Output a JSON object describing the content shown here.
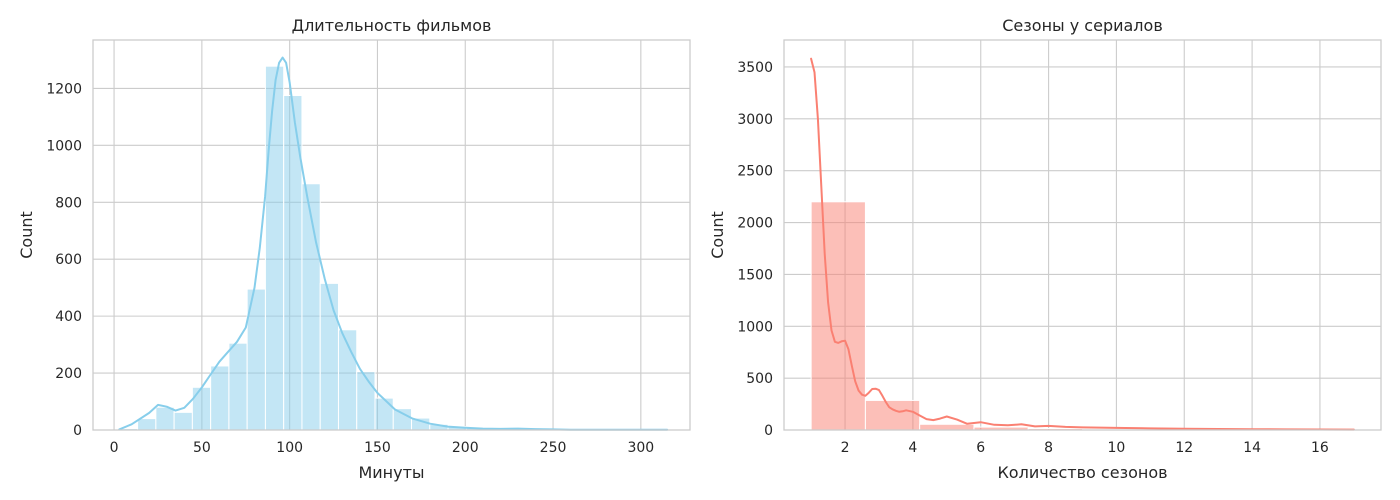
{
  "chart_data": [
    {
      "type": "histogram",
      "title": "Длительность фильмов",
      "xlabel": "Минуты",
      "ylabel": "Count",
      "xlim": [
        -12,
        328
      ],
      "ylim": [
        0,
        1370
      ],
      "xticks": [
        0,
        50,
        100,
        150,
        200,
        250,
        300
      ],
      "yticks": [
        0,
        200,
        400,
        600,
        800,
        1000,
        1200
      ],
      "color": "#87ceeb",
      "bins": [
        {
          "x0": 3,
          "x1": 13.4,
          "count": 5
        },
        {
          "x0": 13.4,
          "x1": 23.8,
          "count": 40
        },
        {
          "x0": 23.8,
          "x1": 34.2,
          "count": 80
        },
        {
          "x0": 34.2,
          "x1": 44.6,
          "count": 62
        },
        {
          "x0": 44.6,
          "x1": 55,
          "count": 150
        },
        {
          "x0": 55,
          "x1": 65.4,
          "count": 225
        },
        {
          "x0": 65.4,
          "x1": 75.8,
          "count": 305
        },
        {
          "x0": 75.8,
          "x1": 86.2,
          "count": 495
        },
        {
          "x0": 86.2,
          "x1": 96.6,
          "count": 1278
        },
        {
          "x0": 96.6,
          "x1": 107,
          "count": 1175
        },
        {
          "x0": 107,
          "x1": 117.4,
          "count": 865
        },
        {
          "x0": 117.4,
          "x1": 127.8,
          "count": 515
        },
        {
          "x0": 127.8,
          "x1": 138.2,
          "count": 352
        },
        {
          "x0": 138.2,
          "x1": 148.6,
          "count": 205
        },
        {
          "x0": 148.6,
          "x1": 159,
          "count": 112
        },
        {
          "x0": 159,
          "x1": 169.4,
          "count": 75
        },
        {
          "x0": 169.4,
          "x1": 179.8,
          "count": 42
        },
        {
          "x0": 179.8,
          "x1": 190.2,
          "count": 20
        },
        {
          "x0": 190.2,
          "x1": 200.6,
          "count": 12
        },
        {
          "x0": 200.6,
          "x1": 211,
          "count": 8
        },
        {
          "x0": 211,
          "x1": 221.4,
          "count": 5
        },
        {
          "x0": 221.4,
          "x1": 231.8,
          "count": 6
        },
        {
          "x0": 231.8,
          "x1": 242.2,
          "count": 3
        },
        {
          "x0": 242.2,
          "x1": 252.6,
          "count": 2
        },
        {
          "x0": 252.6,
          "x1": 263,
          "count": 1
        },
        {
          "x0": 263,
          "x1": 273.4,
          "count": 1
        },
        {
          "x0": 273.4,
          "x1": 283.8,
          "count": 1
        },
        {
          "x0": 283.8,
          "x1": 294.2,
          "count": 0
        },
        {
          "x0": 294.2,
          "x1": 304.6,
          "count": 1
        },
        {
          "x0": 304.6,
          "x1": 315,
          "count": 1
        }
      ],
      "kde": {
        "x": [
          3,
          10,
          20,
          25,
          30,
          35,
          40,
          45,
          50,
          55,
          60,
          65,
          70,
          75,
          80,
          83,
          86,
          88,
          90,
          92,
          94,
          96,
          98,
          100,
          103,
          106,
          110,
          115,
          120,
          125,
          130,
          135,
          140,
          145,
          150,
          160,
          170,
          180,
          190,
          200,
          210,
          220,
          230,
          240,
          250,
          260,
          280,
          300,
          315
        ],
        "y": [
          2,
          20,
          60,
          88,
          82,
          68,
          78,
          110,
          150,
          195,
          240,
          275,
          310,
          360,
          500,
          640,
          820,
          980,
          1120,
          1230,
          1290,
          1308,
          1290,
          1220,
          1080,
          960,
          820,
          660,
          530,
          420,
          340,
          275,
          215,
          170,
          130,
          72,
          40,
          22,
          12,
          8,
          5,
          4,
          5,
          3,
          2,
          1,
          1,
          1,
          1
        ]
      }
    },
    {
      "type": "histogram",
      "title": "Сезоны у сериалов",
      "xlabel": "Количество сезонов",
      "ylabel": "Count",
      "xlim": [
        0.2,
        17.8
      ],
      "ylim": [
        0,
        3760
      ],
      "xticks": [
        2,
        4,
        6,
        8,
        10,
        12,
        14,
        16
      ],
      "yticks": [
        0,
        500,
        1000,
        1500,
        2000,
        2500,
        3000,
        3500
      ],
      "color": "#fa8072",
      "bins": [
        {
          "x0": 1,
          "x1": 2.6,
          "count": 2200
        },
        {
          "x0": 2.6,
          "x1": 4.2,
          "count": 285
        },
        {
          "x0": 4.2,
          "x1": 5.8,
          "count": 55
        },
        {
          "x0": 5.8,
          "x1": 7.4,
          "count": 28
        },
        {
          "x0": 7.4,
          "x1": 9,
          "count": 14
        },
        {
          "x0": 9,
          "x1": 10.6,
          "count": 8
        },
        {
          "x0": 10.6,
          "x1": 12.2,
          "count": 4
        },
        {
          "x0": 12.2,
          "x1": 13.8,
          "count": 3
        },
        {
          "x0": 13.8,
          "x1": 15.4,
          "count": 2
        },
        {
          "x0": 15.4,
          "x1": 17,
          "count": 2
        }
      ],
      "kde": {
        "x": [
          1,
          1.1,
          1.2,
          1.3,
          1.4,
          1.5,
          1.6,
          1.7,
          1.8,
          1.9,
          2.0,
          2.1,
          2.2,
          2.3,
          2.4,
          2.5,
          2.6,
          2.7,
          2.8,
          2.9,
          3.0,
          3.1,
          3.2,
          3.3,
          3.4,
          3.5,
          3.6,
          3.7,
          3.8,
          4.0,
          4.2,
          4.4,
          4.6,
          4.8,
          5.0,
          5.3,
          5.6,
          6.0,
          6.4,
          6.8,
          7.2,
          7.6,
          8.0,
          8.5,
          9,
          10,
          11,
          12,
          13,
          14,
          15,
          16,
          17
        ],
        "y": [
          3580,
          3450,
          3000,
          2350,
          1700,
          1230,
          960,
          850,
          840,
          855,
          860,
          780,
          620,
          470,
          380,
          340,
          330,
          360,
          395,
          398,
          385,
          330,
          270,
          220,
          200,
          185,
          175,
          180,
          190,
          175,
          140,
          105,
          95,
          110,
          130,
          100,
          60,
          75,
          50,
          45,
          55,
          35,
          40,
          30,
          25,
          20,
          15,
          12,
          10,
          8,
          6,
          5,
          4
        ]
      }
    }
  ]
}
